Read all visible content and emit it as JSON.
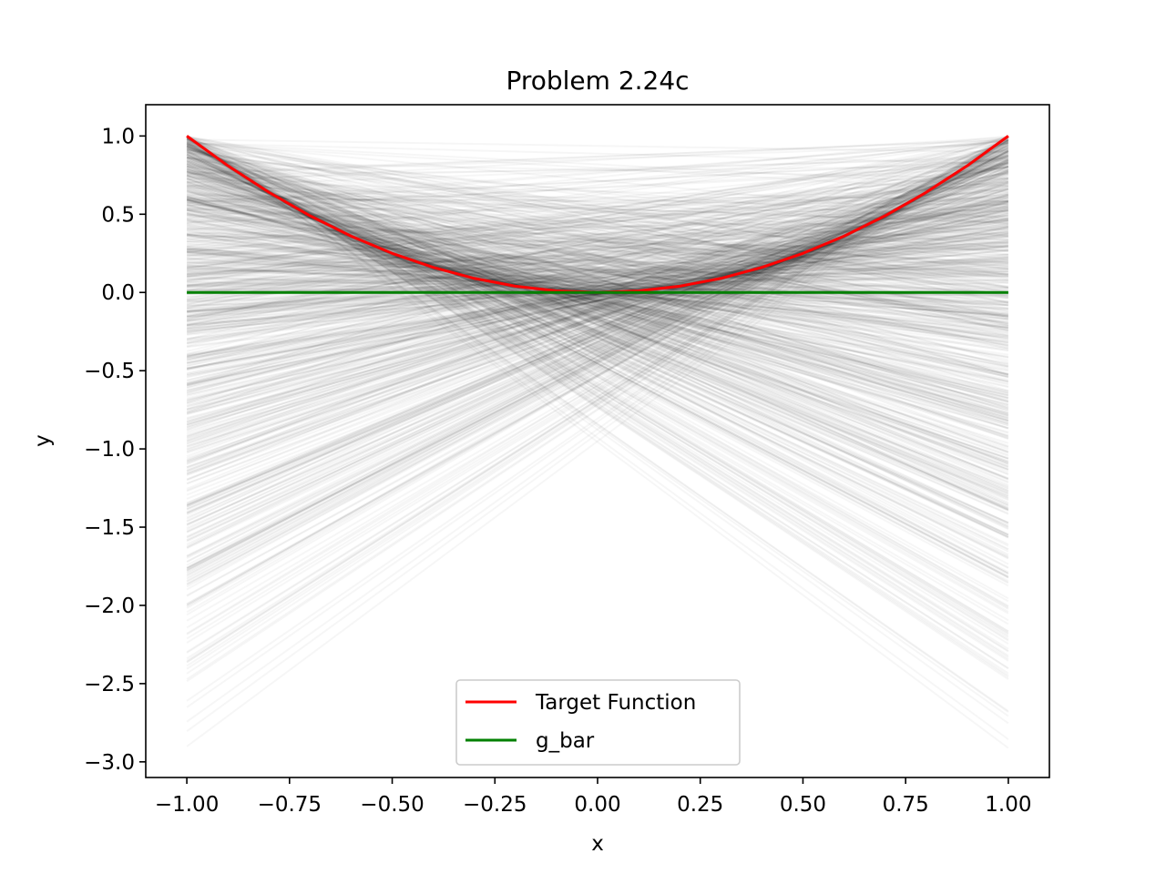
{
  "chart_data": {
    "type": "line",
    "title": "Problem 2.24c",
    "xlabel": "x",
    "ylabel": "y",
    "xlim": [
      -1.1,
      1.1
    ],
    "ylim": [
      -3.1,
      1.2
    ],
    "xticks": [
      -1.0,
      -0.75,
      -0.5,
      -0.25,
      0.0,
      0.25,
      0.5,
      0.75,
      1.0
    ],
    "xtick_labels": [
      "−1.00",
      "−0.75",
      "−0.50",
      "−0.25",
      "0.00",
      "0.25",
      "0.50",
      "0.75",
      "1.00"
    ],
    "yticks": [
      1.0,
      0.5,
      0.0,
      -0.5,
      -1.0,
      -1.5,
      -2.0,
      -2.5,
      -3.0
    ],
    "ytick_labels": [
      "1.0",
      "0.5",
      "0.0",
      "−0.5",
      "−1.0",
      "−1.5",
      "−2.0",
      "−2.5",
      "−3.0"
    ],
    "grid": false,
    "legend_position": "lower center",
    "series": [
      {
        "name": "Target Function",
        "color": "#ff0000",
        "x": [
          -1.0,
          -0.9,
          -0.8,
          -0.7,
          -0.6,
          -0.5,
          -0.4,
          -0.3,
          -0.2,
          -0.1,
          0.0,
          0.1,
          0.2,
          0.3,
          0.4,
          0.5,
          0.6,
          0.7,
          0.8,
          0.9,
          1.0
        ],
        "y": [
          1.0,
          0.81,
          0.64,
          0.49,
          0.36,
          0.25,
          0.16,
          0.09,
          0.04,
          0.01,
          0.0,
          0.01,
          0.04,
          0.09,
          0.16,
          0.25,
          0.36,
          0.49,
          0.64,
          0.81,
          1.0
        ]
      },
      {
        "name": "g_bar",
        "color": "#008000",
        "x": [
          -1.0,
          1.0
        ],
        "y": [
          0.0,
          0.0
        ]
      }
    ],
    "background_hypotheses": {
      "description_color": "#000000",
      "x": [
        -1.0,
        1.0
      ],
      "y_at_minus_1_range": [
        -2.9,
        1.0
      ],
      "y_at_plus_1_range": [
        -2.9,
        1.0
      ]
    }
  }
}
